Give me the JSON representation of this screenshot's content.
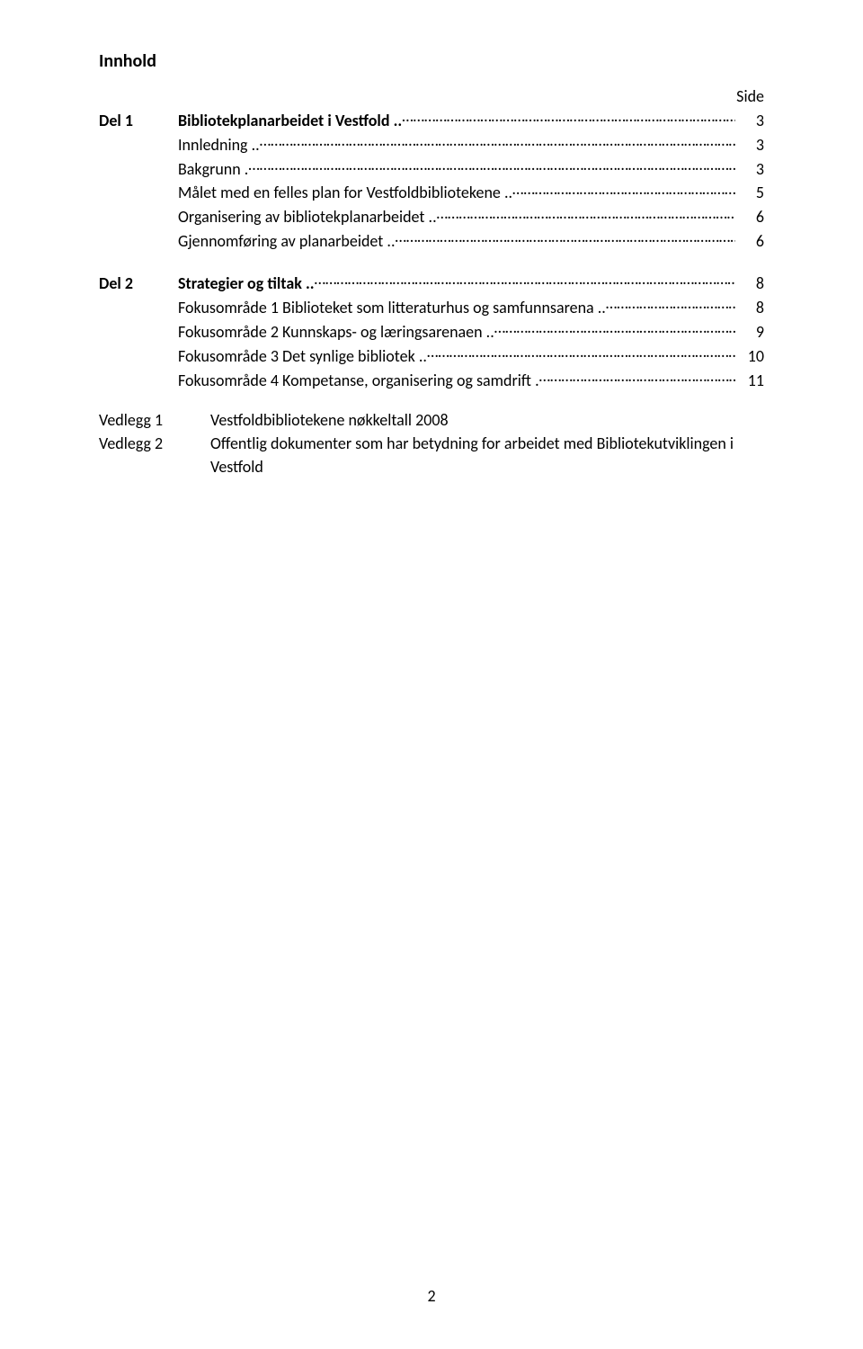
{
  "colors": {
    "background": "#ffffff",
    "text": "#000000"
  },
  "typography": {
    "family": "Calibri",
    "title_fontsize_pt": 15,
    "body_fontsize_pt": 13.5,
    "title_weight": "bold"
  },
  "page": {
    "title": "Innhold",
    "side_label": "Side",
    "footer_page_number": "2"
  },
  "toc": [
    {
      "section": "Del 1",
      "title": "Bibliotekplanarbeidet i Vestfold",
      "page": "3",
      "bold": true,
      "items": [
        {
          "text": "Innledning",
          "page": "3"
        },
        {
          "text": "Bakgrunn",
          "page": "3"
        },
        {
          "text": "Målet med en felles plan for Vestfoldbibliotekene",
          "page": "5"
        },
        {
          "text": "Organisering av bibliotekplanarbeidet",
          "page": "6"
        },
        {
          "text": "Gjennomføring av planarbeidet",
          "page": "6"
        }
      ]
    },
    {
      "section": "Del 2",
      "title": "Strategier og tiltak",
      "page": "8",
      "bold": true,
      "items": [
        {
          "text": "Fokusområde 1 Biblioteket som litteraturhus og samfunnsarena",
          "page": "8"
        },
        {
          "text": "Fokusområde 2 Kunnskaps- og læringsarenaen",
          "page": "9"
        },
        {
          "text": "Fokusområde 3 Det synlige bibliotek",
          "page": "10"
        },
        {
          "text": "Fokusområde 4 Kompetanse, organisering og samdrift",
          "page": "11"
        }
      ]
    }
  ],
  "vedlegg": [
    {
      "label": "Vedlegg 1",
      "text": "Vestfoldbibliotekene nøkkeltall 2008"
    },
    {
      "label": "Vedlegg 2",
      "text": "Offentlig dokumenter som har betydning for arbeidet med Bibliotekutviklingen i Vestfold"
    }
  ]
}
